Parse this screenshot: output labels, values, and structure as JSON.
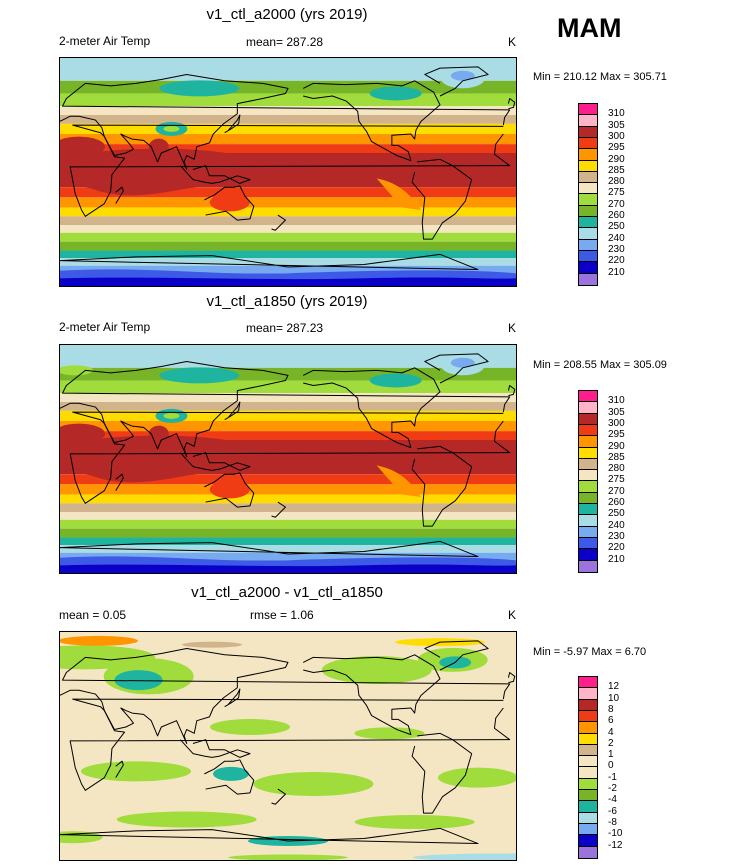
{
  "season": "MAM",
  "panels": [
    {
      "id": "a2000",
      "title": "v1_ctl_a2000 (yrs 2019)",
      "left_label": "2-meter Air Temp",
      "center_label": "mean= 287.28",
      "units": "K",
      "minmax": "Min = 210.12 Max = 305.71",
      "levels": [
        "310",
        "305",
        "300",
        "295",
        "290",
        "285",
        "280",
        "275",
        "270",
        "260",
        "250",
        "240",
        "230",
        "220",
        "210"
      ],
      "colors": [
        "#ff1e8c",
        "#ffb4c8",
        "#b42828",
        "#f03c14",
        "#ff9600",
        "#ffdc00",
        "#d2b48c",
        "#f5e6c3",
        "#a0dc3c",
        "#78b428",
        "#1eb4a0",
        "#aadce6",
        "#78aaf0",
        "#3c5ae6",
        "#0a00c8",
        "#9b73dc"
      ],
      "type": "temp"
    },
    {
      "id": "a1850",
      "title": "v1_ctl_a1850 (yrs 2019)",
      "left_label": "2-meter Air Temp",
      "center_label": "mean= 287.23",
      "units": "K",
      "minmax": "Min = 208.55 Max = 305.09",
      "levels": [
        "310",
        "305",
        "300",
        "295",
        "290",
        "285",
        "280",
        "275",
        "270",
        "260",
        "250",
        "240",
        "230",
        "220",
        "210"
      ],
      "colors": [
        "#ff1e8c",
        "#ffb4c8",
        "#b42828",
        "#f03c14",
        "#ff9600",
        "#ffdc00",
        "#d2b48c",
        "#f5e6c3",
        "#a0dc3c",
        "#78b428",
        "#1eb4a0",
        "#aadce6",
        "#78aaf0",
        "#3c5ae6",
        "#0a00c8",
        "#9b73dc"
      ],
      "type": "temp"
    },
    {
      "id": "diff",
      "title": "v1_ctl_a2000 - v1_ctl_a1850",
      "left_label": "mean =   0.05",
      "center_label": "rmse =   1.06",
      "units": "K",
      "minmax": "Min =  -5.97 Max =   6.70",
      "levels": [
        "12",
        "10",
        "8",
        "6",
        "4",
        "2",
        "1",
        "0",
        "-1",
        "-2",
        "-4",
        "-6",
        "-8",
        "-10",
        "-12"
      ],
      "colors": [
        "#ff1e8c",
        "#ffb4c8",
        "#b42828",
        "#f03c14",
        "#ff9600",
        "#ffdc00",
        "#d2b48c",
        "#f5e6c3",
        "#f5e6c3",
        "#a0dc3c",
        "#78b428",
        "#1eb4a0",
        "#aadce6",
        "#78aaf0",
        "#0a00c8",
        "#9b73dc"
      ],
      "type": "diff"
    }
  ],
  "chart_data": {
    "type": "heatmap",
    "title": "MAM",
    "xlabel": "",
    "ylabel": "",
    "description_units": "K"
  }
}
